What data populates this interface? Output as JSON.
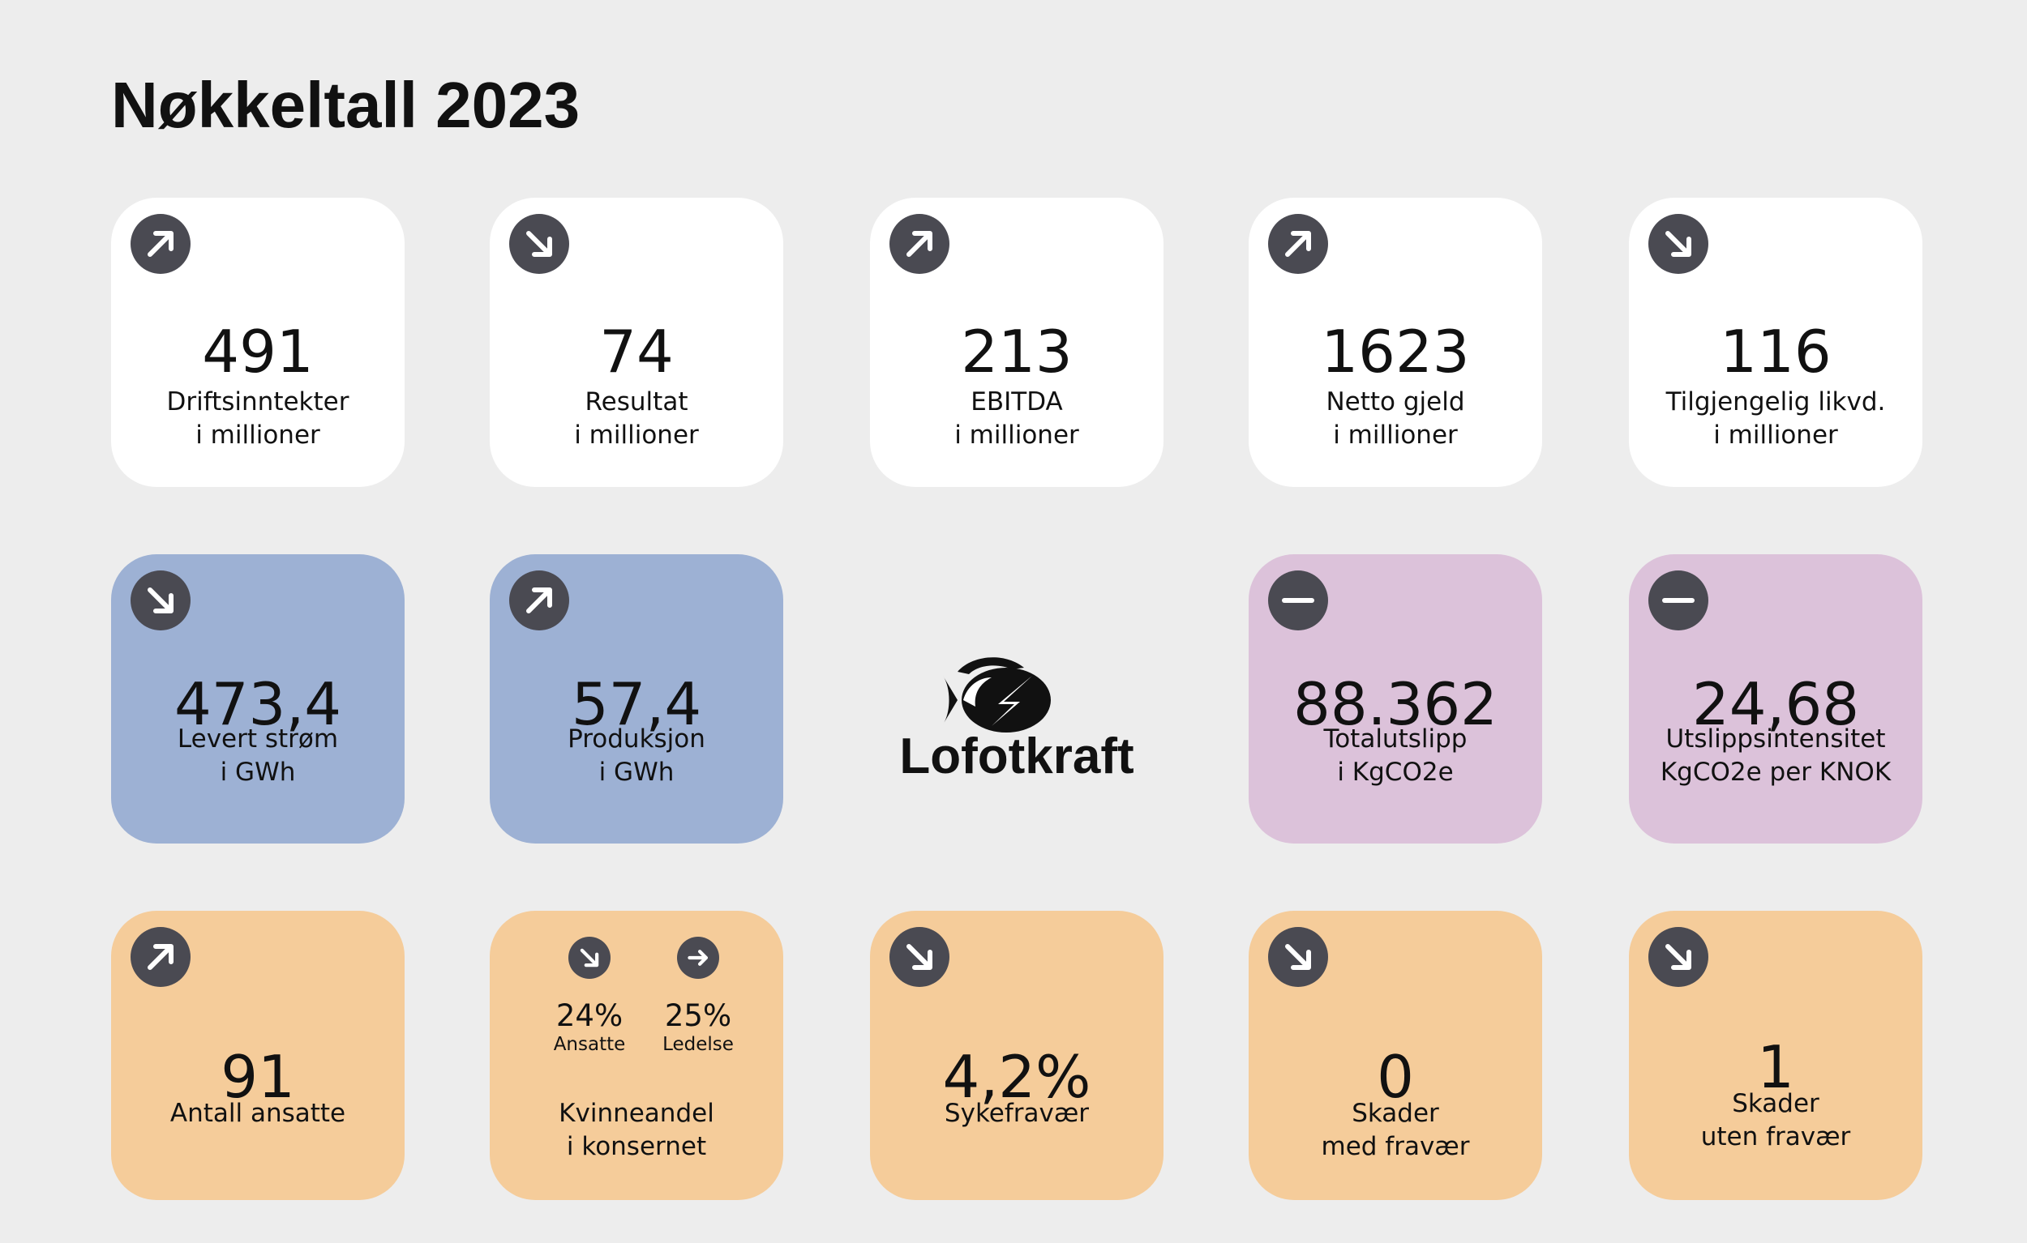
{
  "header": {
    "title": "Nøkkeltall 2023"
  },
  "cards": [
    {
      "value": "491",
      "label": [
        "Driftsinntekter",
        "i millioner"
      ]
    },
    {
      "value": "74",
      "label": [
        "Resultat",
        "i millioner"
      ]
    },
    {
      "value": "213",
      "label": [
        "EBITDA",
        "i millioner"
      ]
    },
    {
      "value": "1623",
      "label": [
        "Netto gjeld",
        "i millioner"
      ]
    },
    {
      "value": "116",
      "label": [
        "Tilgjengelig likvd.",
        "i millioner"
      ]
    },
    {
      "value": "473,4",
      "label": [
        "Levert strøm",
        "i GWh"
      ]
    },
    {
      "value": "57,4",
      "label": [
        "Produksjon",
        "i GWh"
      ]
    },
    {
      "value": "88.362",
      "label": [
        "Totalutslipp",
        "i KgCO2e"
      ]
    },
    {
      "value": "24,68",
      "label": [
        "Utslippsintensitet",
        "KgCO2e per KNOK"
      ]
    },
    {
      "value": "91",
      "label": [
        "Antall ansatte"
      ]
    },
    {
      "items": [
        {
          "value": "24%",
          "label": "Ansatte"
        },
        {
          "value": "25%",
          "label": "Ledelse"
        }
      ],
      "label": [
        "Kvinneandel",
        "i konsernet"
      ]
    },
    {
      "value": "4,2%",
      "label": [
        "Sykefravær"
      ]
    },
    {
      "value": "0",
      "label": [
        "Skader",
        "med fravær"
      ]
    },
    {
      "value": "1",
      "label": [
        "Skader",
        "uten fravær"
      ]
    }
  ],
  "logo": {
    "name": "Lofotkraft"
  }
}
